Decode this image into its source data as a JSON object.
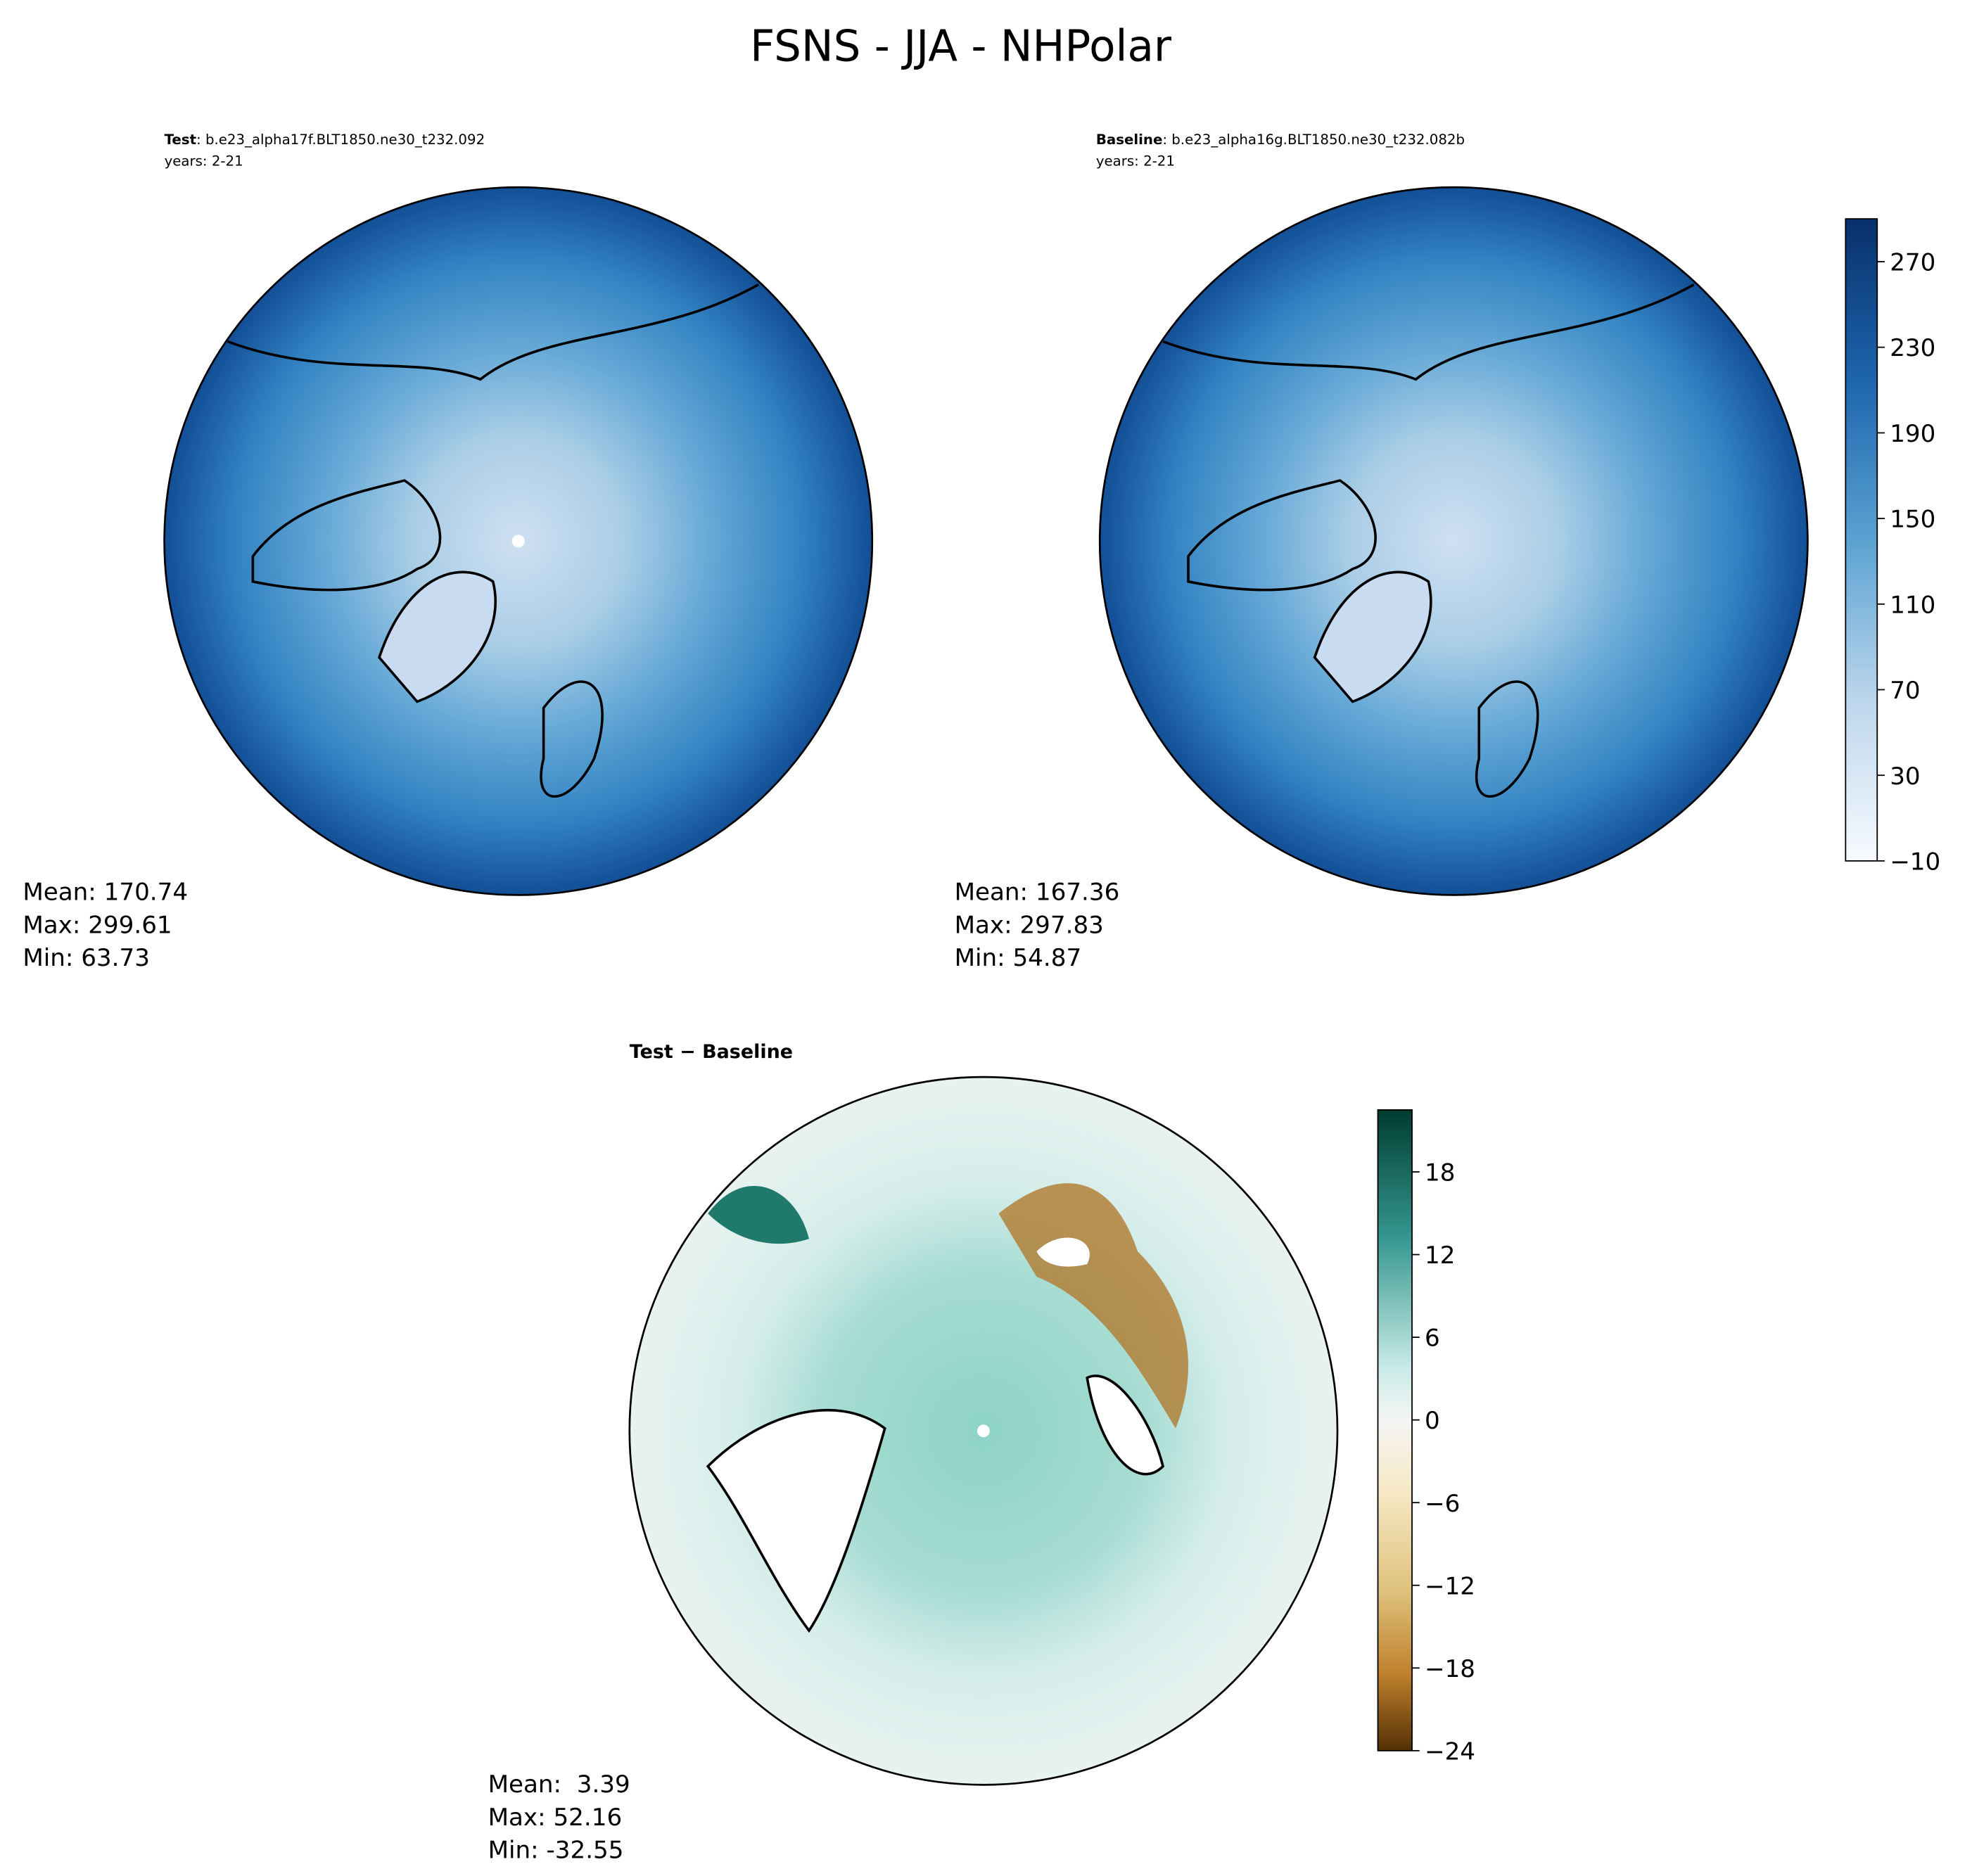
{
  "title": "FSNS - JJA - NHPolar",
  "chart_data": [
    {
      "type": "map",
      "header_label": "Test",
      "header_text": ": b.e23_alpha17f.BLT1850.ne30_t232.092",
      "subtitle": "years: 2-21",
      "stats": [
        "Mean: 170.74",
        "Max: 299.61",
        "Min: 63.73"
      ]
    },
    {
      "type": "map",
      "header_label": "Baseline",
      "header_text": ": b.e23_alpha16g.BLT1850.ne30_t232.082b",
      "subtitle": "years: 2-21",
      "stats": [
        "Mean: 167.36",
        "Max: 297.83",
        "Min: 54.87"
      ],
      "colorbar": {
        "ylim": [
          -10,
          290
        ],
        "yticks": [
          {
            "value": -10,
            "label": "−10"
          },
          30,
          70,
          110,
          150,
          190,
          230,
          270
        ]
      }
    },
    {
      "type": "map",
      "header_label": "Test − Baseline",
      "stats": [
        "Mean:  3.39",
        "Max: 52.16",
        "Min: -32.55"
      ],
      "colorbar": {
        "ylim": [
          -24,
          22.5
        ],
        "yticks": [
          {
            "value": -24,
            "label": "−24"
          },
          {
            "value": -18,
            "label": "−18"
          },
          {
            "value": -12,
            "label": "−12"
          },
          {
            "value": -6,
            "label": "−6"
          },
          0,
          6,
          12,
          18
        ]
      }
    }
  ]
}
